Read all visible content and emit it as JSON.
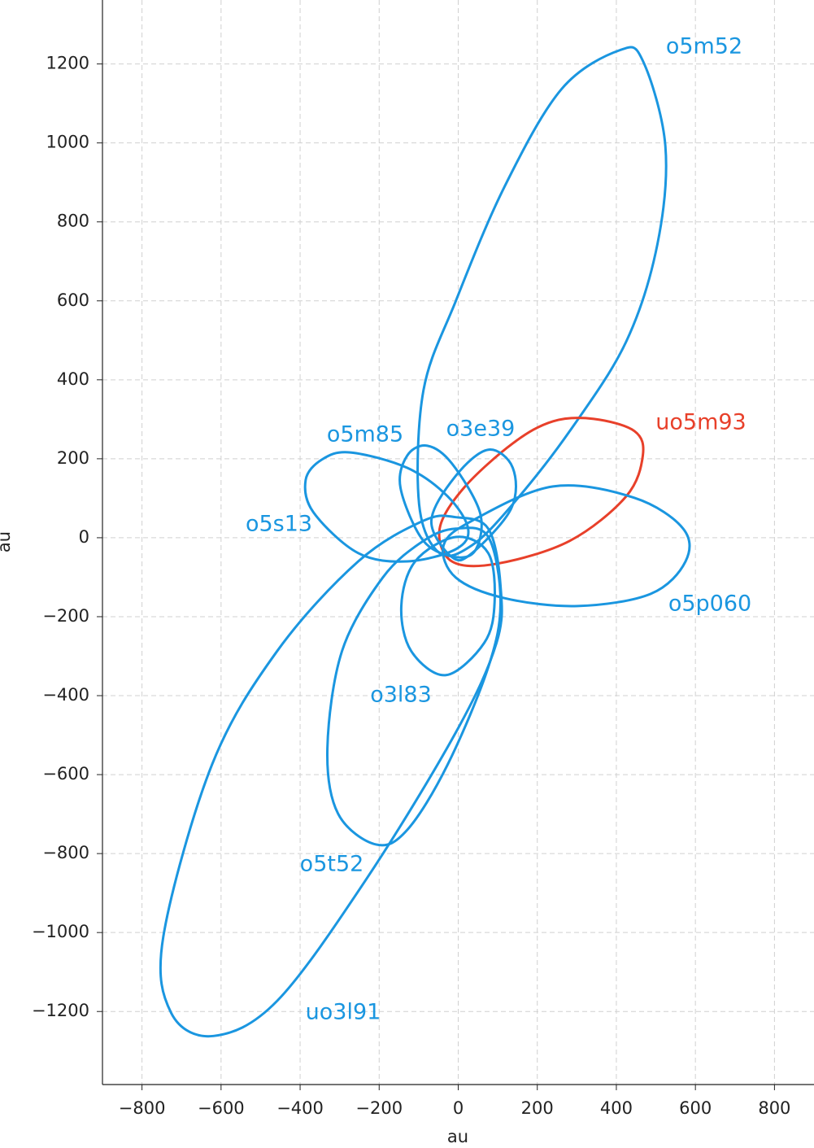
{
  "chart_data": {
    "type": "orbit",
    "xlabel": "au",
    "ylabel": "au",
    "xlim": [
      -900,
      900
    ],
    "ylim": [
      -1385,
      1362
    ],
    "xticks": [
      {
        "value": -800,
        "label": "−800"
      },
      {
        "value": -600,
        "label": "−600"
      },
      {
        "value": -400,
        "label": "−400"
      },
      {
        "value": -200,
        "label": "−200"
      },
      0,
      200,
      400,
      600,
      800
    ],
    "yticks": [
      {
        "value": -1200,
        "label": "−1200"
      },
      {
        "value": -1000,
        "label": "−1000"
      },
      {
        "value": -800,
        "label": "−800"
      },
      {
        "value": -600,
        "label": "−600"
      },
      {
        "value": -400,
        "label": "−400"
      },
      {
        "value": -200,
        "label": "−200"
      },
      0,
      200,
      400,
      600,
      800,
      1000,
      1200
    ],
    "grid": true,
    "series": [
      {
        "name": "o5m52",
        "color": "#1a96e0",
        "x": [
          409,
          467,
          524,
          504,
          425,
          282,
          138,
          35,
          -47,
          -99,
          -88,
          -6,
          117,
          261
        ],
        "y": [
          1235,
          1208,
          992,
          744,
          497,
          270,
          85,
          -19,
          -39,
          85,
          373,
          600,
          889,
          1136
        ]
      },
      {
        "name": "uo5m93",
        "color": "#e8402a",
        "x": [
          343,
          446,
          467,
          425,
          282,
          97,
          -16,
          -47,
          14,
          138,
          240
        ],
        "y": [
          301,
          270,
          208,
          105,
          -8,
          -66,
          -60,
          23,
          126,
          239,
          295
        ]
      },
      {
        "name": "o5p060",
        "color": "#1a96e0",
        "x": [
          240,
          446,
          569,
          575,
          487,
          302,
          117,
          -6,
          -37,
          35
        ],
        "y": [
          130,
          101,
          23,
          -60,
          -142,
          -173,
          -153,
          -101,
          -19,
          43
        ]
      },
      {
        "name": "o5m85",
        "color": "#1a96e0",
        "x": [
          -78,
          -16,
          55,
          45,
          -6,
          -88,
          -146,
          -129
        ],
        "y": [
          233,
          188,
          64,
          -29,
          -49,
          -8,
          126,
          208
        ]
      },
      {
        "name": "o3e39",
        "color": "#1a96e0",
        "x": [
          76,
          138,
          134,
          35,
          -16,
          -68,
          -6
        ],
        "y": [
          223,
          177,
          74,
          -39,
          -49,
          43,
          157
        ]
      },
      {
        "name": "o5s13",
        "color": "#1a96e0",
        "x": [
          -273,
          -129,
          -27,
          25,
          -6,
          -129,
          -253,
          -366,
          -386,
          -345
        ],
        "y": [
          216,
          177,
          105,
          23,
          -29,
          -60,
          -39,
          64,
          146,
          198
        ]
      },
      {
        "name": "o3l83",
        "color": "#1a96e0",
        "x": [
          -6,
          76,
          92,
          66,
          -31,
          -119,
          -144,
          -109
        ],
        "y": [
          2,
          -39,
          -163,
          -266,
          -348,
          -287,
          -173,
          -60
        ]
      },
      {
        "name": "o5t52",
        "color": "#1a96e0",
        "x": [
          -6,
          76,
          107,
          76,
          -27,
          -129,
          -208,
          -304,
          -331,
          -294,
          -191,
          -88
        ],
        "y": [
          23,
          2,
          -163,
          -328,
          -575,
          -740,
          -777,
          -699,
          -534,
          -287,
          -101,
          -8
        ]
      },
      {
        "name": "uo3l91",
        "color": "#1a96e0",
        "x": [
          -6,
          76,
          107,
          97,
          -6,
          -232,
          -458,
          -619,
          -726,
          -746,
          -623,
          -458,
          -253,
          -88
        ],
        "y": [
          52,
          23,
          -122,
          -266,
          -493,
          -864,
          -1173,
          -1262,
          -1204,
          -1010,
          -575,
          -287,
          -60,
          43
        ]
      }
    ]
  }
}
